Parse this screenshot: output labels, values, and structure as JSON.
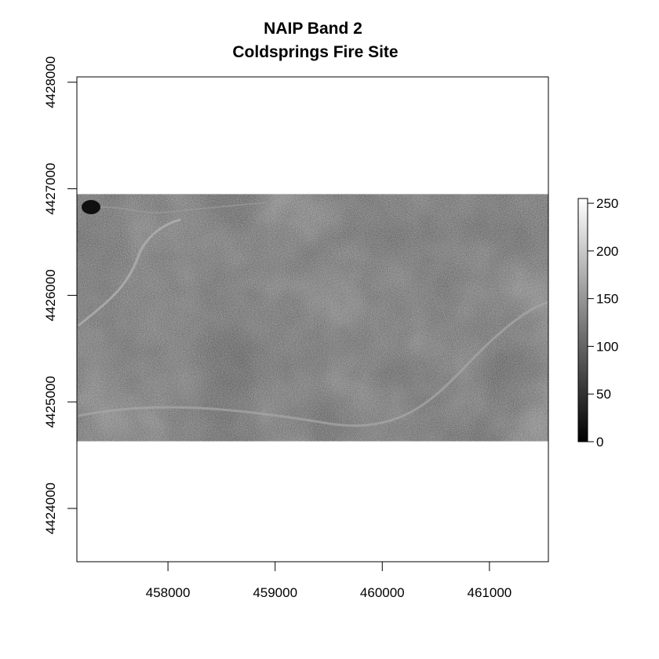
{
  "chart_data": {
    "type": "heatmap",
    "title": "NAIP Band 2",
    "subtitle": "Coldsprings Fire Site",
    "xlabel": "",
    "ylabel": "",
    "xlim": [
      457150,
      461550
    ],
    "ylim": [
      4423500,
      4428050
    ],
    "x_ticks": [
      458000,
      459000,
      460000,
      461000
    ],
    "y_ticks": [
      4424000,
      4425000,
      4426000,
      4427000,
      4428000
    ],
    "raster_extent": {
      "xmin": 457150,
      "xmax": 461550,
      "ymin": 4424630,
      "ymax": 4426950
    },
    "colorbar": {
      "min": 0,
      "max": 255,
      "ticks": [
        0,
        50,
        100,
        150,
        200,
        250
      ],
      "colors": [
        "#000000",
        "#ffffff"
      ]
    },
    "grid": false,
    "legend": "right"
  }
}
